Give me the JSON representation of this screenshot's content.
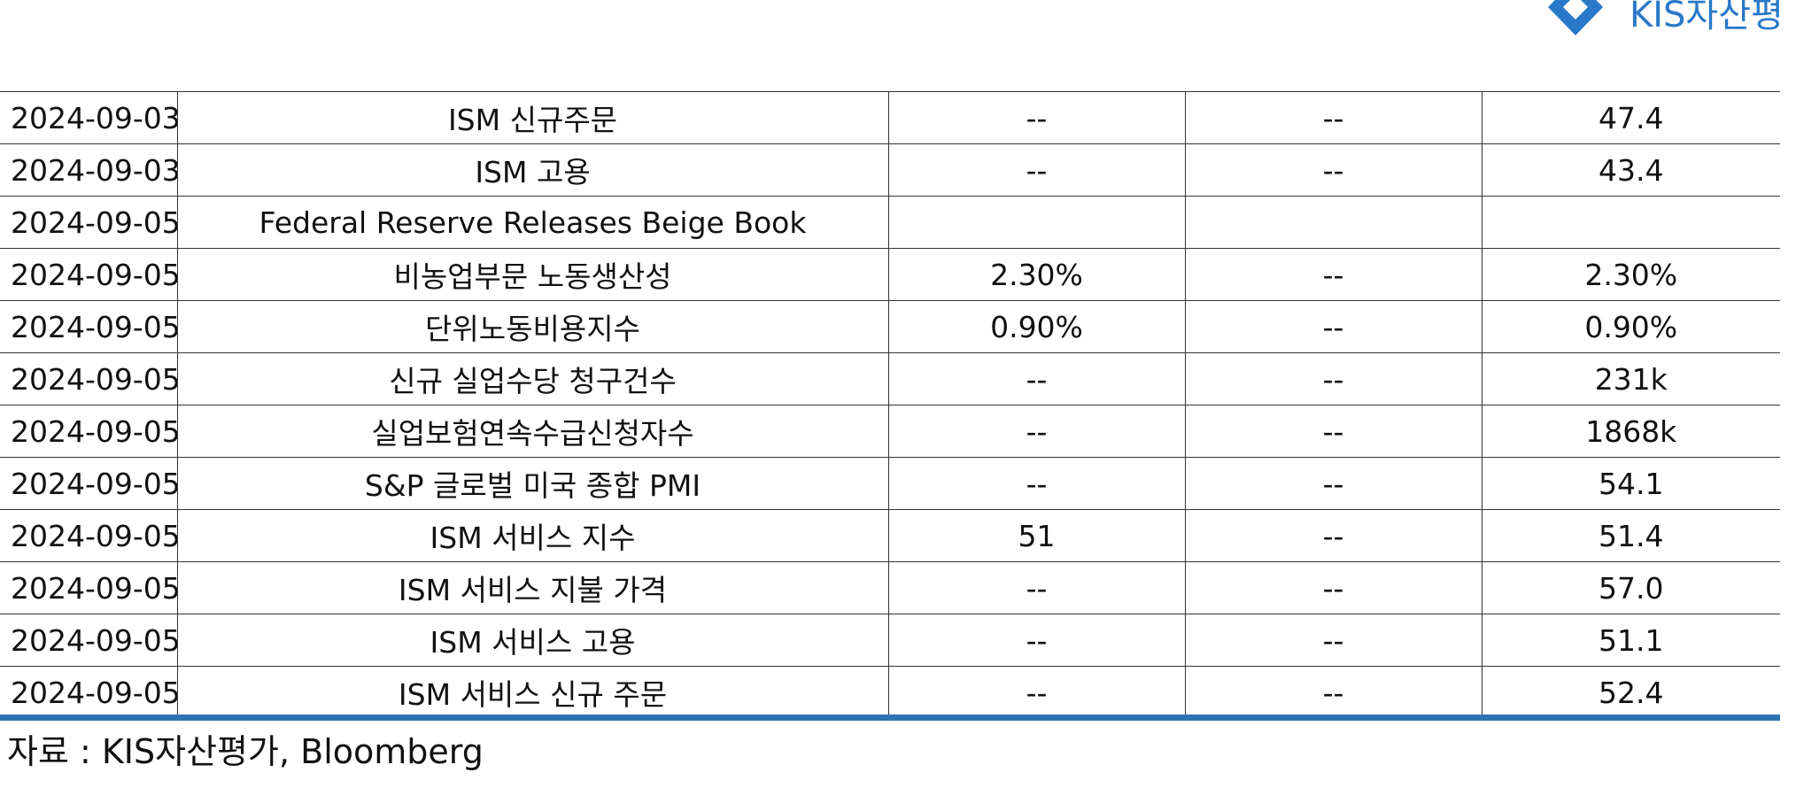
{
  "brand": {
    "logo_text": "KIS자산평",
    "logo_color": "#2a78c8"
  },
  "table": {
    "rows": [
      {
        "date": "2024-09-03",
        "event": "ISM 신규주문",
        "col_a": "--",
        "col_b": "--",
        "col_c": "47.4"
      },
      {
        "date": "2024-09-03",
        "event": "ISM 고용",
        "col_a": "--",
        "col_b": "--",
        "col_c": "43.4"
      },
      {
        "date": "2024-09-05",
        "event": "Federal Reserve Releases Beige Book",
        "col_a": "",
        "col_b": "",
        "col_c": ""
      },
      {
        "date": "2024-09-05",
        "event": "비농업부문 노동생산성",
        "col_a": "2.30%",
        "col_b": "--",
        "col_c": "2.30%"
      },
      {
        "date": "2024-09-05",
        "event": "단위노동비용지수",
        "col_a": "0.90%",
        "col_b": "--",
        "col_c": "0.90%"
      },
      {
        "date": "2024-09-05",
        "event": "신규 실업수당 청구건수",
        "col_a": "--",
        "col_b": "--",
        "col_c": "231k"
      },
      {
        "date": "2024-09-05",
        "event": "실업보험연속수급신청자수",
        "col_a": "--",
        "col_b": "--",
        "col_c": "1868k"
      },
      {
        "date": "2024-09-05",
        "event": "S&P 글로벌 미국 종합 PMI",
        "col_a": "--",
        "col_b": "--",
        "col_c": "54.1"
      },
      {
        "date": "2024-09-05",
        "event": "ISM 서비스 지수",
        "col_a": "51",
        "col_b": "--",
        "col_c": "51.4"
      },
      {
        "date": "2024-09-05",
        "event": "ISM 서비스 지불 가격",
        "col_a": "--",
        "col_b": "--",
        "col_c": "57.0"
      },
      {
        "date": "2024-09-05",
        "event": "ISM 서비스 고용",
        "col_a": "--",
        "col_b": "--",
        "col_c": "51.1"
      },
      {
        "date": "2024-09-05",
        "event": "ISM 서비스 신규 주문",
        "col_a": "--",
        "col_b": "--",
        "col_c": "52.4"
      }
    ]
  },
  "footer": {
    "source": "자료 : KIS자산평가, Bloomberg",
    "rule_color": "#2e74b5"
  }
}
